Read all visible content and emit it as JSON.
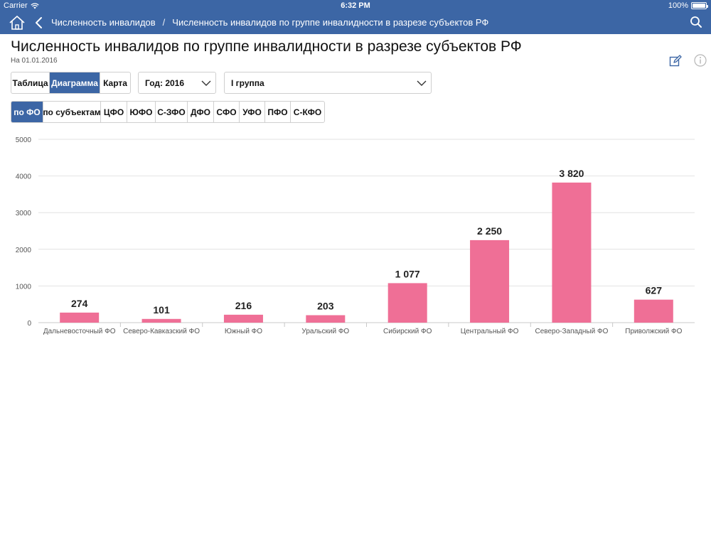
{
  "status": {
    "carrier": "Carrier",
    "time": "6:32 PM",
    "battery": "100%"
  },
  "nav": {
    "breadcrumb_1": "Численность инвалидов",
    "breadcrumb_sep": "/",
    "breadcrumb_2": "Численность инвалидов по группе инвалидности в разрезе субъектов РФ"
  },
  "header": {
    "title": "Численность инвалидов по группе инвалидности в разрезе субъектов РФ",
    "date": "На 01.01.2016"
  },
  "view_tabs": [
    {
      "label": "Таблица",
      "active": false
    },
    {
      "label": "Диаграмма",
      "active": true
    },
    {
      "label": "Карта",
      "active": false
    }
  ],
  "year_select": {
    "value": "Год: 2016"
  },
  "group_select": {
    "value": "I группа"
  },
  "region_tabs": [
    {
      "label": "по ФО",
      "active": true
    },
    {
      "label": "по субъектам",
      "active": false
    },
    {
      "label": "ЦФО",
      "active": false
    },
    {
      "label": "ЮФО",
      "active": false
    },
    {
      "label": "С-ЗФО",
      "active": false
    },
    {
      "label": "ДФО",
      "active": false
    },
    {
      "label": "СФО",
      "active": false
    },
    {
      "label": "УФО",
      "active": false
    },
    {
      "label": "ПФО",
      "active": false
    },
    {
      "label": "С-КФО",
      "active": false
    }
  ],
  "colors": {
    "accent": "#3c66a5",
    "bar": "#ef6f96"
  },
  "chart_data": {
    "type": "bar",
    "categories": [
      "Дальневосточный ФО",
      "Северо-Кавказский ФО",
      "Южный ФО",
      "Уральский ФО",
      "Сибирский ФО",
      "Центральный ФО",
      "Северо-Западный ФО",
      "Приволжский ФО"
    ],
    "values": [
      274,
      101,
      216,
      203,
      1077,
      2250,
      3820,
      627
    ],
    "value_labels": [
      "274",
      "101",
      "216",
      "203",
      "1 077",
      "2 250",
      "3 820",
      "627"
    ],
    "ylim": [
      0,
      5000
    ],
    "yticks": [
      0,
      1000,
      2000,
      3000,
      4000,
      5000
    ],
    "ytick_labels": [
      "0",
      "1000",
      "2000",
      "3000",
      "4000",
      "5000"
    ],
    "grid": true,
    "title": "",
    "xlabel": "",
    "ylabel": ""
  }
}
